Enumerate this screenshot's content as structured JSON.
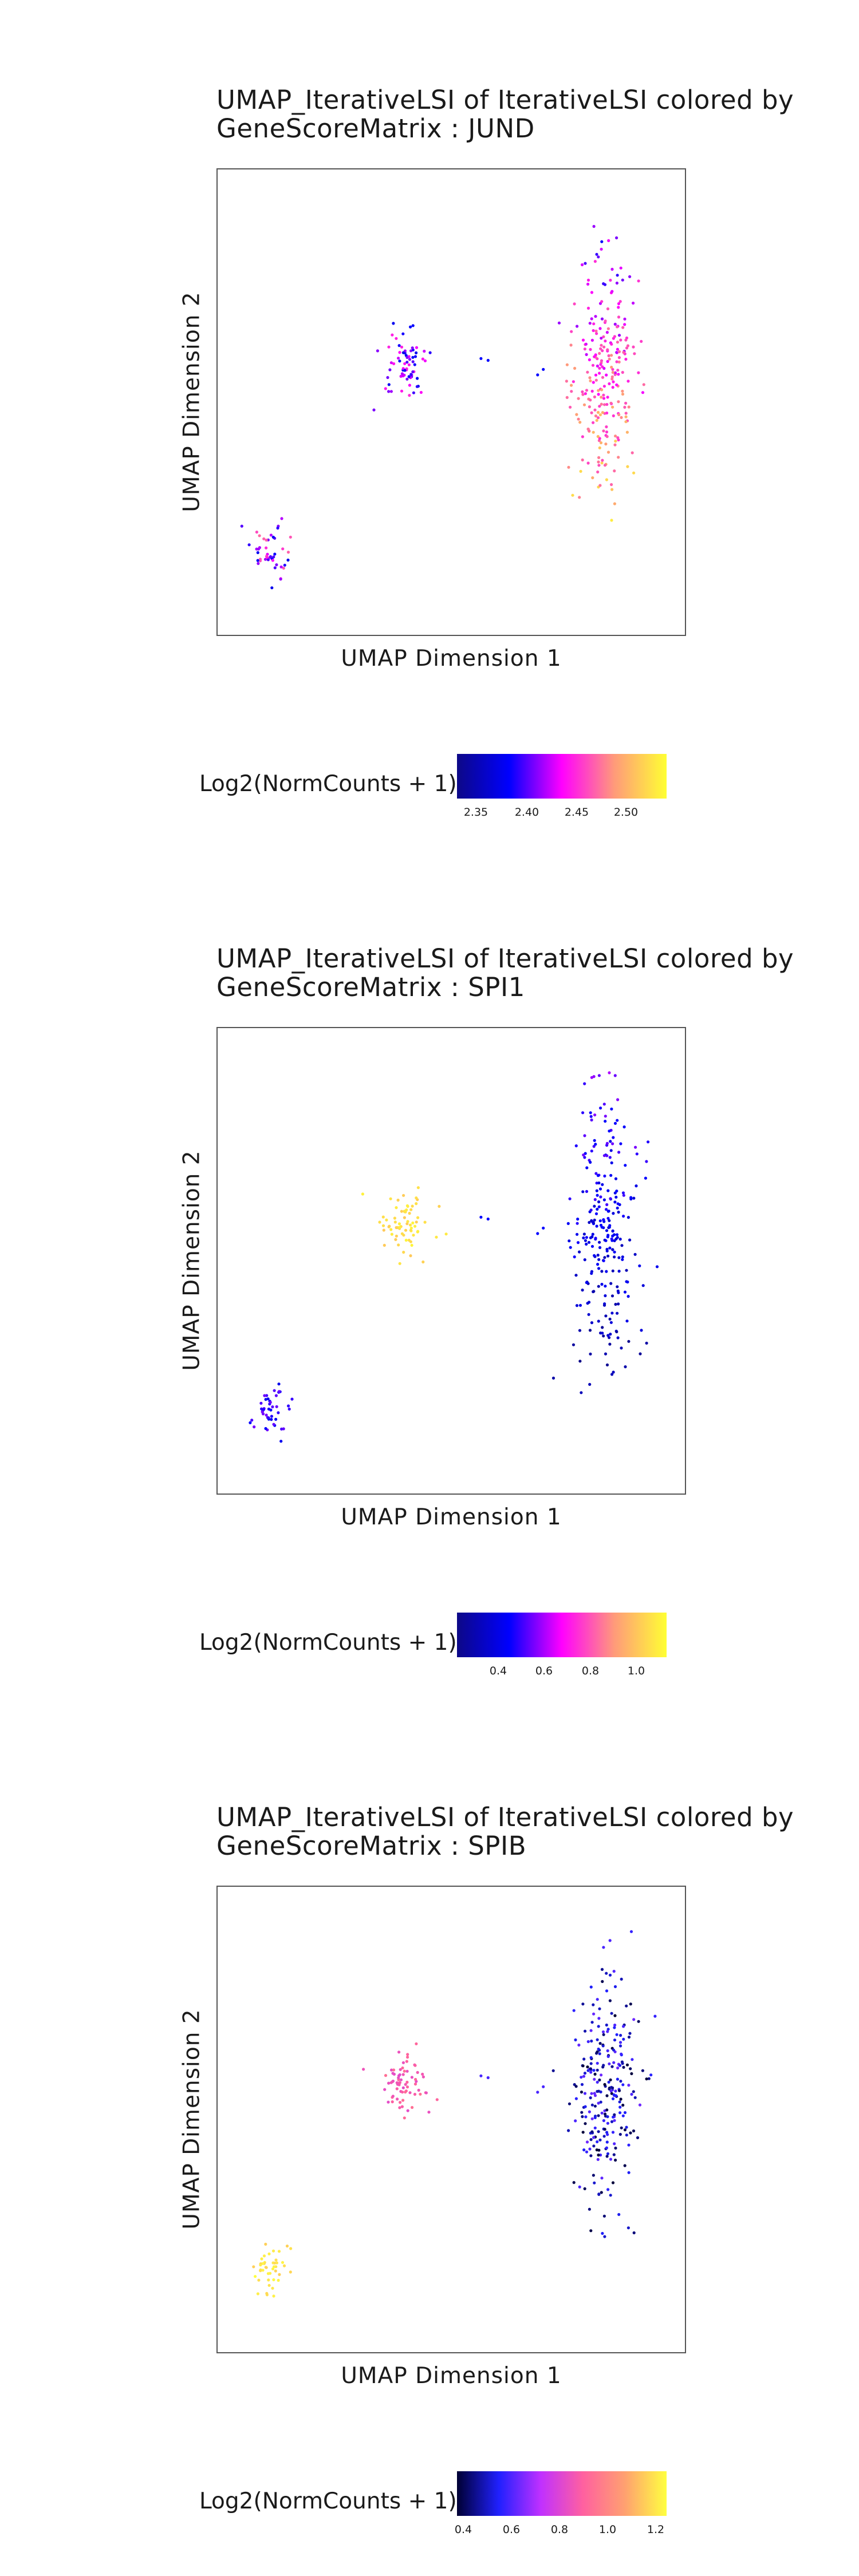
{
  "chart_data": [
    {
      "type": "scatter",
      "title_line1": "UMAP_IterativeLSI of IterativeLSI colored by",
      "title_line2": "GeneScoreMatrix : JUND",
      "xlabel": "UMAP Dimension 1",
      "ylabel": "UMAP Dimension 2",
      "legend_title": "Log2(NormCounts + 1)",
      "colorbar_ticks": [
        "2.35",
        "2.40",
        "2.45",
        "2.50"
      ],
      "colorbar_range": [
        2.33,
        2.52
      ],
      "colormap": [
        "#0d0887",
        "#0000ff",
        "#ff00ff",
        "#ff9a7a",
        "#ffff33"
      ],
      "clusters": [
        {
          "name": "small",
          "cx": -8.6,
          "cy": -4.9,
          "sx": 0.35,
          "sy": 0.75,
          "n": 45,
          "value_range": [
            2.37,
            2.46
          ],
          "tail": 0.0
        },
        {
          "name": "middle",
          "cx": -3.9,
          "cy": 0.2,
          "sx": 0.45,
          "sy": 0.9,
          "n": 70,
          "value_range": [
            2.37,
            2.44
          ],
          "tail": 0.0
        },
        {
          "name": "large",
          "cx": 3.2,
          "cy": 0.1,
          "sx": 0.55,
          "sy": 3.4,
          "n": 260,
          "value_range": [
            2.37,
            2.52
          ],
          "tail": 1.0
        }
      ]
    },
    {
      "type": "scatter",
      "title_line1": "UMAP_IterativeLSI of IterativeLSI colored by",
      "title_line2": "GeneScoreMatrix : SPI1",
      "xlabel": "UMAP Dimension 1",
      "ylabel": "UMAP Dimension 2",
      "legend_title": "Log2(NormCounts + 1)",
      "colorbar_ticks": [
        "0.4",
        "0.6",
        "0.8",
        "1.0"
      ],
      "colorbar_range": [
        0.22,
        1.12
      ],
      "colormap": [
        "#0d0887",
        "#0000ff",
        "#ff00ff",
        "#ff9a7a",
        "#ffff33"
      ],
      "clusters": [
        {
          "name": "small",
          "cx": -8.6,
          "cy": -4.9,
          "sx": 0.35,
          "sy": 0.75,
          "n": 45,
          "value_range": [
            0.4,
            0.55
          ],
          "tail": 0.0
        },
        {
          "name": "middle",
          "cx": -3.9,
          "cy": 0.2,
          "sx": 0.45,
          "sy": 0.9,
          "n": 70,
          "value_range": [
            1.0,
            1.1
          ],
          "tail": 0.0
        },
        {
          "name": "large",
          "cx": 3.2,
          "cy": 0.1,
          "sx": 0.55,
          "sy": 3.4,
          "n": 260,
          "value_range": [
            0.22,
            0.6
          ],
          "tail": -1.0
        }
      ]
    },
    {
      "type": "scatter",
      "title_line1": "UMAP_IterativeLSI of IterativeLSI colored by",
      "title_line2": "GeneScoreMatrix : SPIB",
      "xlabel": "UMAP Dimension 1",
      "ylabel": "UMAP Dimension 2",
      "legend_title": "Log2(NormCounts + 1)",
      "colorbar_ticks": [
        "0.4",
        "0.6",
        "0.8",
        "1.0",
        "1.2"
      ],
      "colorbar_range": [
        0.3,
        1.3
      ],
      "colormap": [
        "#000033",
        "#2020ff",
        "#c030ff",
        "#ff60a0",
        "#ffa070",
        "#ffff40"
      ],
      "clusters": [
        {
          "name": "small",
          "cx": -8.6,
          "cy": -4.9,
          "sx": 0.35,
          "sy": 0.75,
          "n": 45,
          "value_range": [
            1.2,
            1.3
          ],
          "tail": 0.0
        },
        {
          "name": "middle",
          "cx": -3.9,
          "cy": 0.2,
          "sx": 0.45,
          "sy": 0.9,
          "n": 70,
          "value_range": [
            0.8,
            0.95
          ],
          "tail": 0.0
        },
        {
          "name": "large",
          "cx": 3.2,
          "cy": 0.1,
          "sx": 0.55,
          "sy": 3.4,
          "n": 260,
          "value_range": [
            0.3,
            0.6
          ],
          "tail": 0.0
        }
      ]
    }
  ]
}
